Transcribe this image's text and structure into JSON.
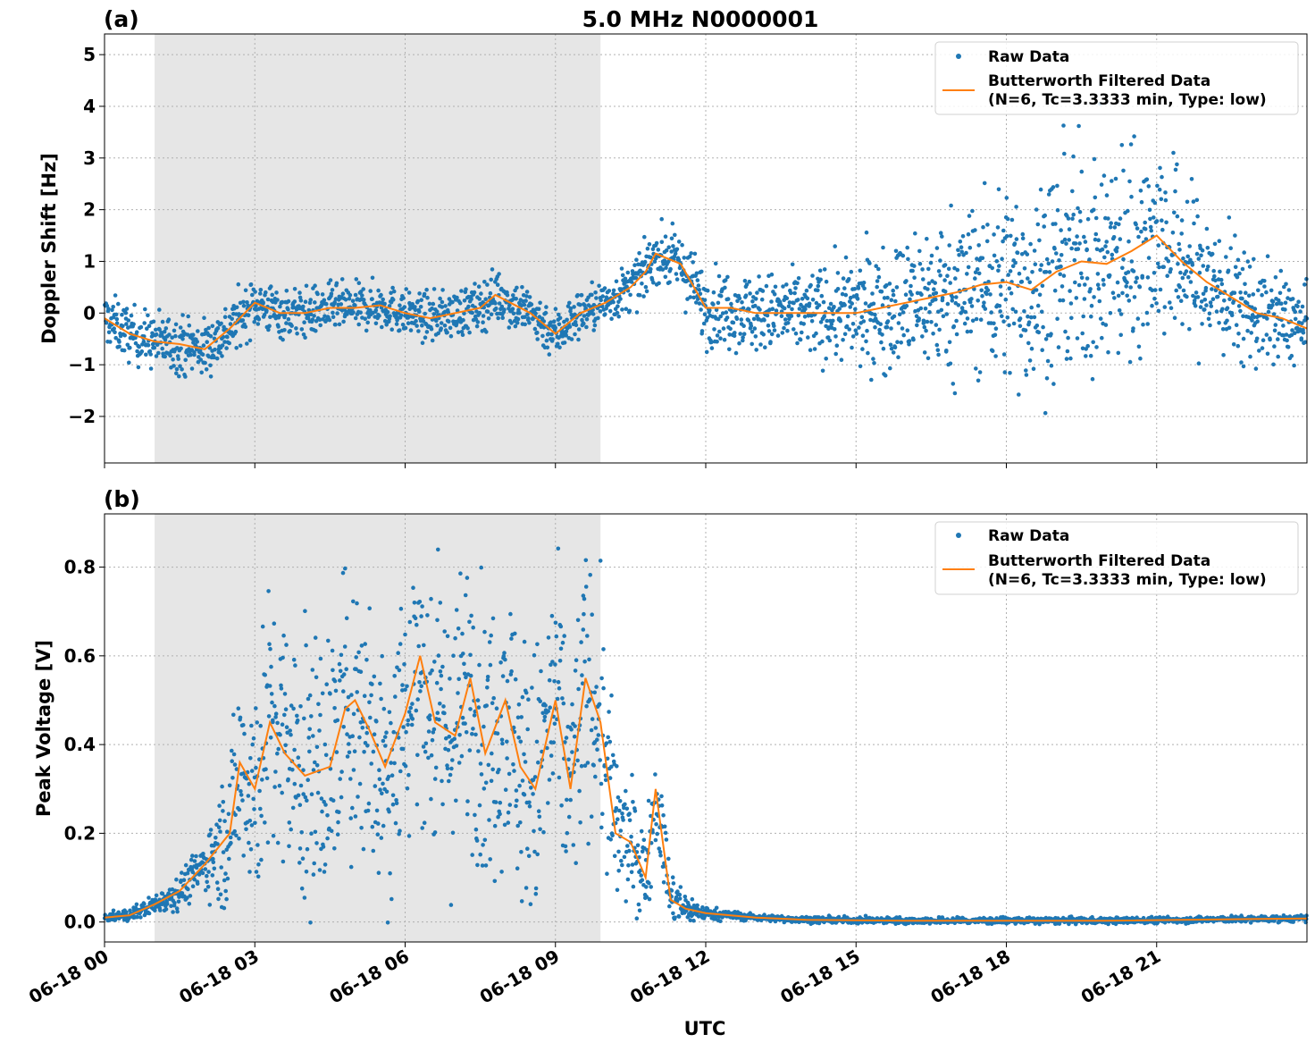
{
  "figure": {
    "title": "5.0 MHz N0000001",
    "xlabel": "UTC",
    "x_tick_labels": [
      "06-18 00",
      "06-18 03",
      "06-18 06",
      "06-18 09",
      "06-18 12",
      "06-18 15",
      "06-18 18",
      "06-18 21"
    ],
    "shaded_interval_hours": [
      1.0,
      9.9
    ],
    "colors": {
      "raw": "#1f77b4",
      "filtered": "#ff7f0e",
      "shade": "#e6e6e6",
      "grid": "#b0b0b0"
    }
  },
  "legend": {
    "raw_label": "Raw Data",
    "filtered_label_line1": "Butterworth Filtered Data",
    "filtered_label_line2": "(N=6, Tc=3.3333 min, Type: low)",
    "placement": "top-right"
  },
  "chart_data": [
    {
      "type": "scatter",
      "panel_label": "(a)",
      "ylabel": "Doppler Shift [Hz]",
      "x_unit": "hours UTC on 06-18",
      "xlim": [
        0,
        24
      ],
      "ylim": [
        -2.9,
        5.4
      ],
      "y_ticks": [
        5,
        4,
        3,
        2,
        1,
        0,
        -1,
        -2
      ],
      "y_tick_labels": [
        "5",
        "4",
        "3",
        "2",
        "1",
        "0",
        "−1",
        "−2"
      ],
      "grid": true,
      "series": [
        {
          "name": "Butterworth Filtered Data",
          "kind": "line",
          "x": [
            0,
            0.5,
            1.0,
            1.5,
            2.0,
            2.5,
            3.0,
            3.5,
            4.0,
            4.5,
            5.0,
            5.5,
            6.0,
            6.5,
            7.0,
            7.5,
            7.8,
            8.0,
            8.5,
            9.0,
            9.5,
            10.0,
            10.5,
            10.8,
            11.0,
            11.5,
            12.0,
            12.5,
            13.0,
            13.5,
            14.0,
            14.5,
            15.0,
            15.5,
            16.0,
            16.5,
            17.0,
            17.5,
            18.0,
            18.5,
            19.0,
            19.5,
            20.0,
            20.5,
            21.0,
            21.5,
            22.0,
            22.5,
            23.0,
            23.5,
            24.0
          ],
          "values": [
            -0.1,
            -0.4,
            -0.55,
            -0.6,
            -0.7,
            -0.3,
            0.2,
            0.0,
            0.0,
            0.1,
            0.1,
            0.15,
            0.0,
            -0.1,
            0.0,
            0.1,
            0.35,
            0.25,
            0.0,
            -0.4,
            0.0,
            0.2,
            0.5,
            0.8,
            1.15,
            0.95,
            0.1,
            0.1,
            0.0,
            0.0,
            0.0,
            0.0,
            0.0,
            0.1,
            0.2,
            0.3,
            0.4,
            0.55,
            0.6,
            0.45,
            0.8,
            1.0,
            0.95,
            1.2,
            1.5,
            1.0,
            0.6,
            0.3,
            0.0,
            -0.1,
            -0.3
          ]
        },
        {
          "name": "Raw Data",
          "kind": "points",
          "spread_x": [
            0,
            2,
            3,
            6,
            8,
            9,
            10,
            11,
            12,
            14,
            16,
            18,
            20,
            21,
            22,
            23,
            24
          ],
          "spread_hz": [
            0.35,
            0.4,
            0.35,
            0.3,
            0.35,
            0.35,
            0.3,
            0.35,
            0.5,
            0.55,
            0.9,
            1.3,
            1.55,
            1.35,
            1.0,
            0.7,
            0.5
          ]
        }
      ]
    },
    {
      "type": "scatter",
      "panel_label": "(b)",
      "ylabel": "Peak Voltage [V]",
      "x_unit": "hours UTC on 06-18",
      "xlim": [
        0,
        24
      ],
      "ylim": [
        -0.045,
        0.92
      ],
      "y_ticks": [
        0.0,
        0.2,
        0.4,
        0.6,
        0.8
      ],
      "y_tick_labels": [
        "0.0",
        "0.2",
        "0.4",
        "0.6",
        "0.8"
      ],
      "grid": true,
      "series": [
        {
          "name": "Butterworth Filtered Data",
          "kind": "line",
          "x": [
            0,
            0.5,
            1.0,
            1.5,
            2.0,
            2.5,
            2.7,
            3.0,
            3.3,
            3.6,
            4.0,
            4.5,
            4.8,
            5.0,
            5.3,
            5.6,
            6.0,
            6.3,
            6.6,
            7.0,
            7.3,
            7.6,
            8.0,
            8.3,
            8.6,
            9.0,
            9.3,
            9.6,
            9.9,
            10.2,
            10.5,
            10.8,
            11.0,
            11.3,
            11.6,
            12.0,
            13.0,
            14.0,
            16.0,
            20.0,
            24.0
          ],
          "values": [
            0.01,
            0.015,
            0.04,
            0.07,
            0.13,
            0.2,
            0.36,
            0.3,
            0.45,
            0.38,
            0.33,
            0.35,
            0.48,
            0.5,
            0.43,
            0.35,
            0.47,
            0.6,
            0.45,
            0.42,
            0.55,
            0.38,
            0.5,
            0.35,
            0.3,
            0.5,
            0.3,
            0.55,
            0.45,
            0.2,
            0.18,
            0.1,
            0.3,
            0.05,
            0.03,
            0.02,
            0.01,
            0.005,
            0.003,
            0.003,
            0.008
          ]
        },
        {
          "name": "Raw Data",
          "kind": "points",
          "spread_x": [
            0,
            1,
            2,
            2.5,
            3,
            4,
            6,
            8,
            9,
            10,
            10.5,
            11,
            11.5,
            12,
            13,
            24
          ],
          "spread_v": [
            0.005,
            0.015,
            0.04,
            0.12,
            0.2,
            0.22,
            0.22,
            0.22,
            0.22,
            0.18,
            0.08,
            0.08,
            0.03,
            0.01,
            0.005,
            0.005
          ]
        }
      ]
    }
  ]
}
